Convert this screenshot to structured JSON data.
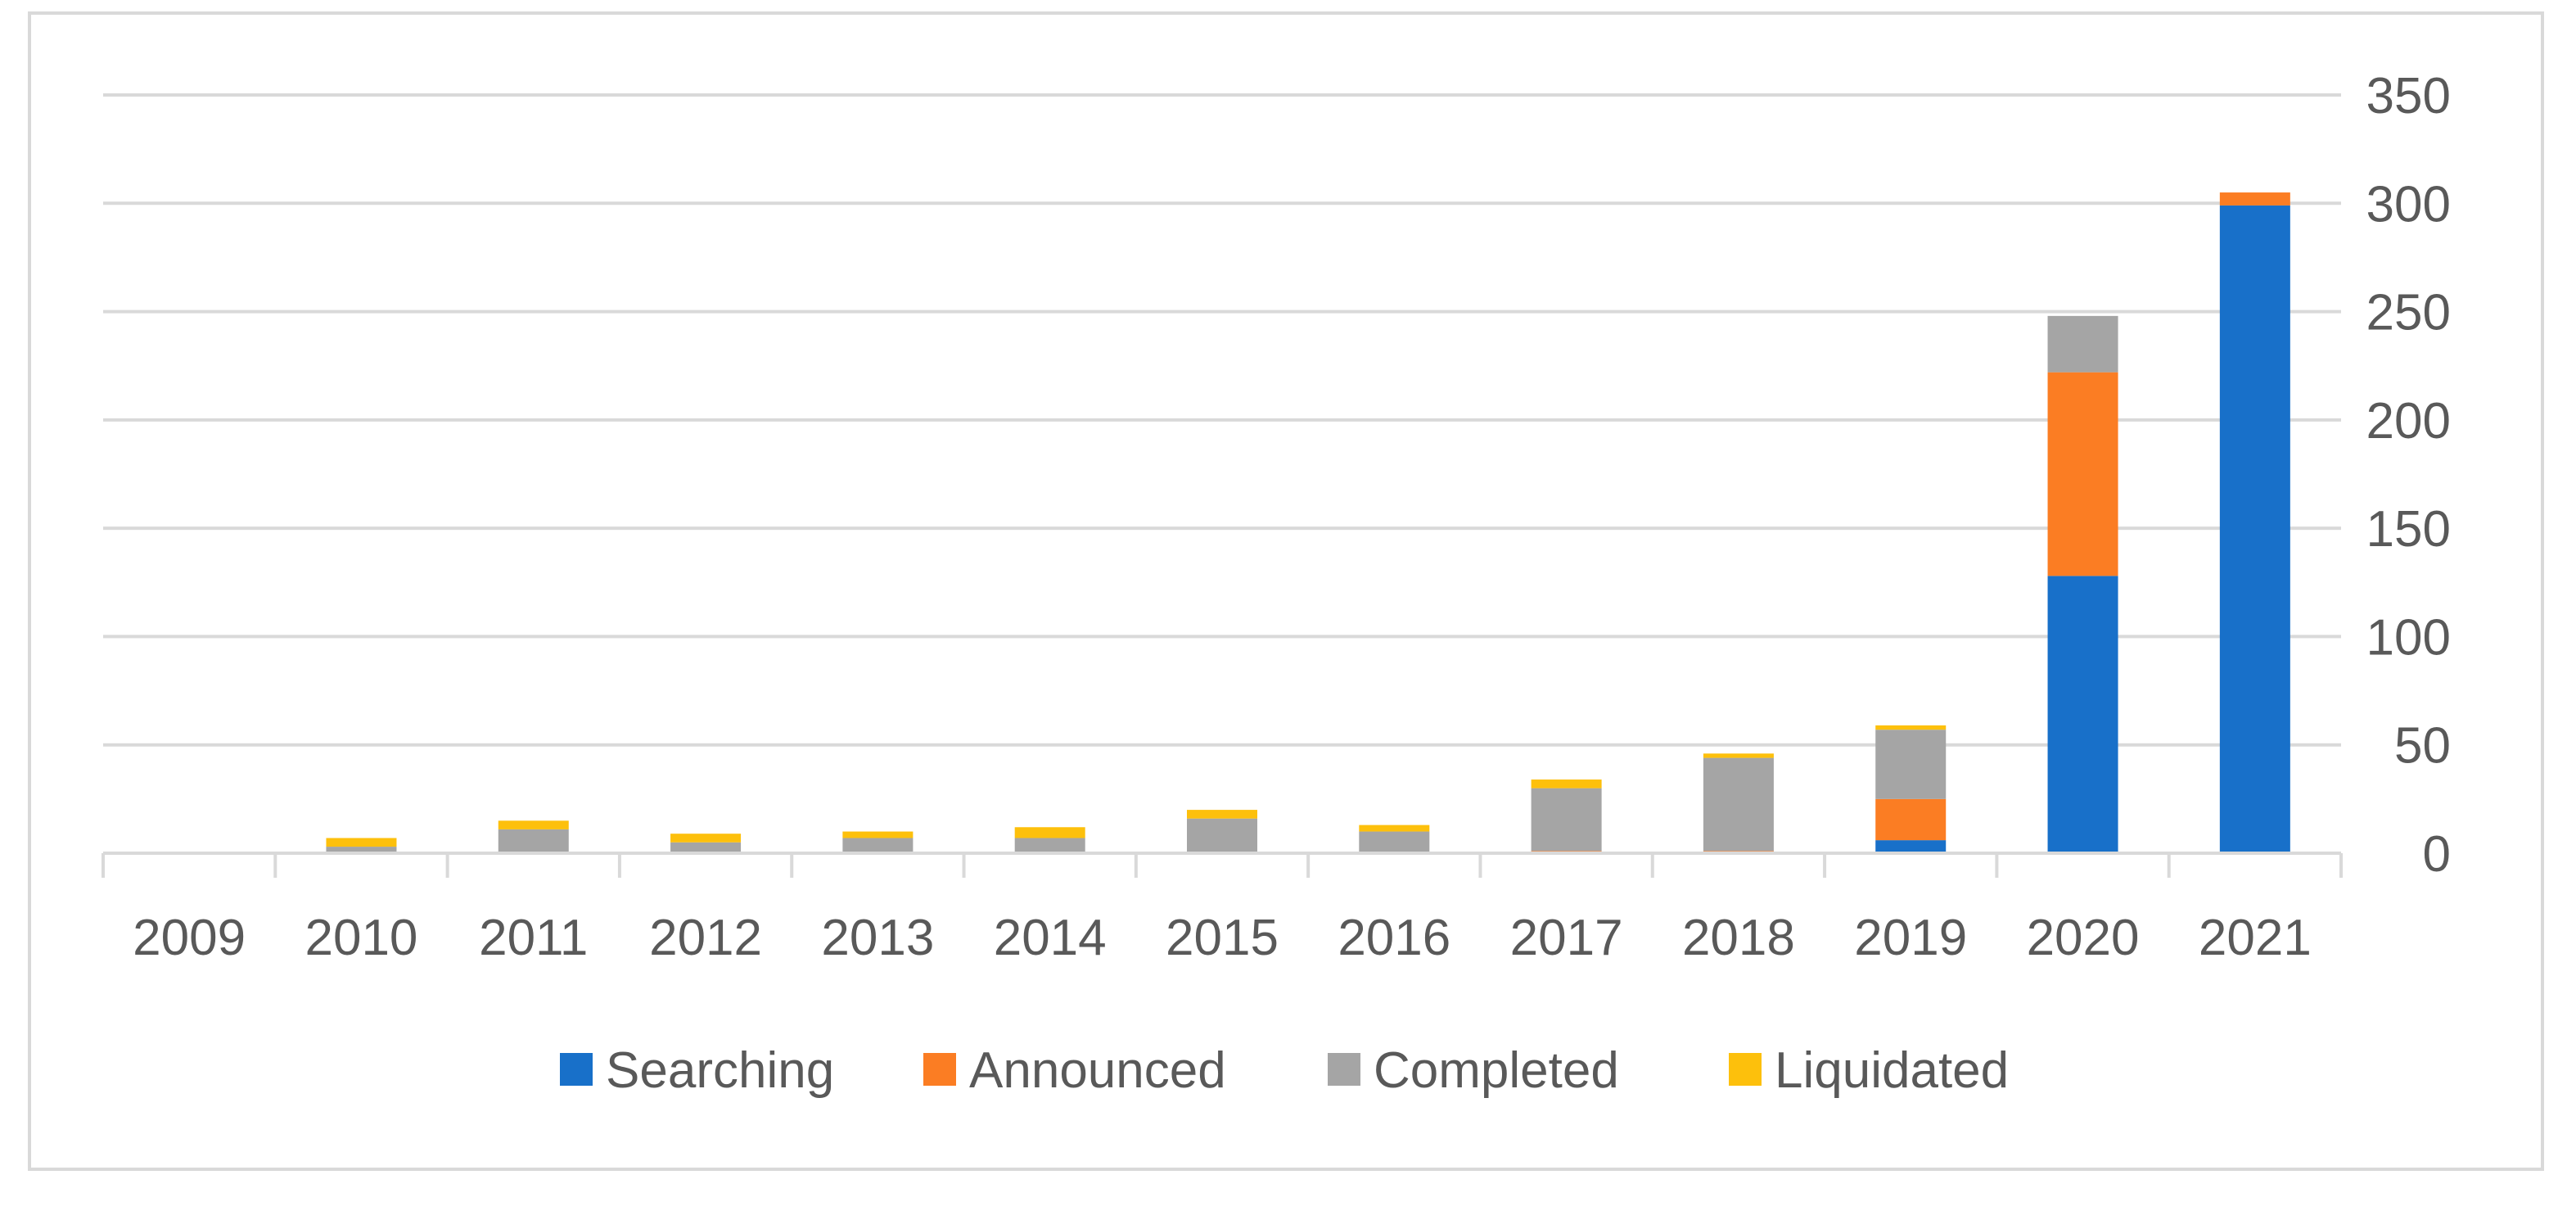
{
  "chart_data": {
    "type": "bar",
    "stacked": true,
    "title": "",
    "xlabel": "",
    "ylabel": "",
    "categories": [
      "2009",
      "2010",
      "2011",
      "2012",
      "2013",
      "2014",
      "2015",
      "2016",
      "2017",
      "2018",
      "2019",
      "2020",
      "2021"
    ],
    "series": [
      {
        "name": "Searching",
        "color": "#1870c9",
        "values": [
          0,
          0,
          0,
          0,
          0,
          0,
          0,
          0,
          0,
          0,
          6,
          128,
          299
        ]
      },
      {
        "name": "Announced",
        "color": "#fb7d23",
        "values": [
          0,
          0,
          0,
          0,
          0,
          0,
          0,
          0,
          1,
          1,
          19,
          94,
          6
        ]
      },
      {
        "name": "Completed",
        "color": "#a5a5a5",
        "values": [
          0,
          3,
          11,
          5,
          7,
          7,
          16,
          10,
          29,
          43,
          32,
          26,
          0
        ]
      },
      {
        "name": "Liquidated",
        "color": "#fdc00c",
        "values": [
          0,
          4,
          4,
          4,
          3,
          5,
          4,
          3,
          4,
          2,
          2,
          0,
          0
        ]
      }
    ],
    "ylim": [
      0,
      350
    ],
    "yticks": [
      0,
      50,
      100,
      150,
      200,
      250,
      300,
      350
    ],
    "y_axis_side": "right",
    "grid": true,
    "legend_position": "bottom"
  }
}
